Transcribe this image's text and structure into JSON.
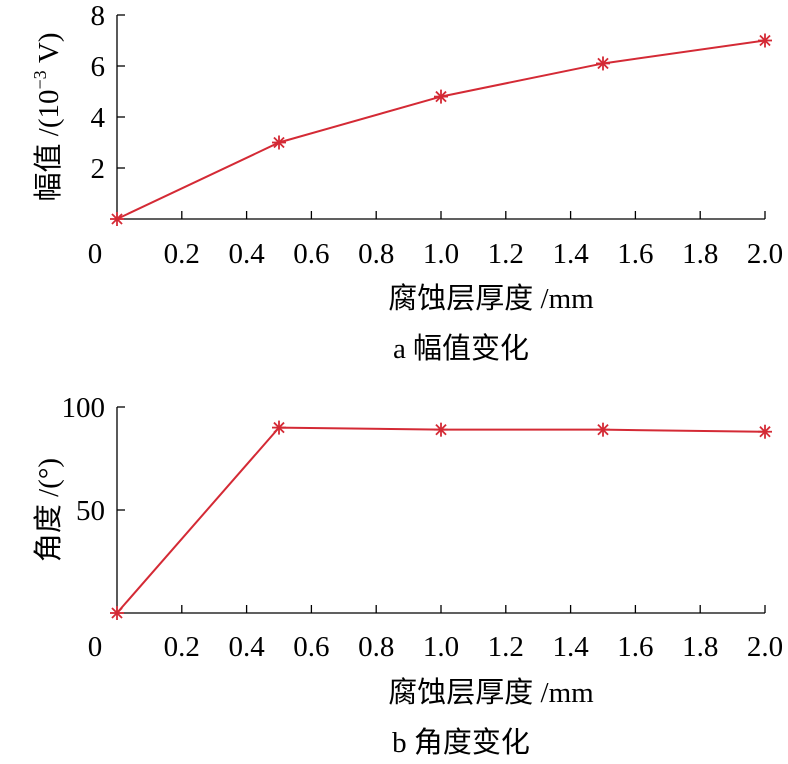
{
  "chart_data": [
    {
      "type": "line",
      "caption": "a 幅值变化",
      "xlabel": "腐蚀层厚度 /mm",
      "ylabel": {
        "prefix": "幅值 /(10",
        "exponent": "−3",
        "suffix": " V)"
      },
      "x": [
        0,
        0.5,
        1.0,
        1.5,
        2.0
      ],
      "x_ticks": [
        "0",
        "0.2",
        "0.4",
        "0.6",
        "0.8",
        "1.0",
        "1.2",
        "1.4",
        "1.6",
        "1.8",
        "2.0"
      ],
      "y_ticks": [
        "2",
        "4",
        "6",
        "8"
      ],
      "ylim": [
        0,
        8
      ],
      "xlim": [
        0,
        2.0
      ],
      "series": [
        {
          "values": [
            0,
            3.0,
            4.8,
            6.1,
            7.0
          ]
        }
      ],
      "marker": "asterisk",
      "color": "#d42a35"
    },
    {
      "type": "line",
      "caption": "b 角度变化",
      "xlabel": "腐蚀层厚度 /mm",
      "ylabel": {
        "prefix": "角度 /(°)",
        "exponent": "",
        "suffix": ""
      },
      "x": [
        0,
        0.5,
        1.0,
        1.5,
        2.0
      ],
      "x_ticks": [
        "0",
        "0.2",
        "0.4",
        "0.6",
        "0.8",
        "1.0",
        "1.2",
        "1.4",
        "1.6",
        "1.8",
        "2.0"
      ],
      "y_ticks": [
        "50",
        "100"
      ],
      "ylim": [
        0,
        100
      ],
      "xlim": [
        0,
        2.0
      ],
      "series": [
        {
          "values": [
            0,
            90.0,
            89.0,
            89.0,
            88.0
          ]
        }
      ],
      "marker": "asterisk",
      "color": "#d42a35"
    }
  ]
}
